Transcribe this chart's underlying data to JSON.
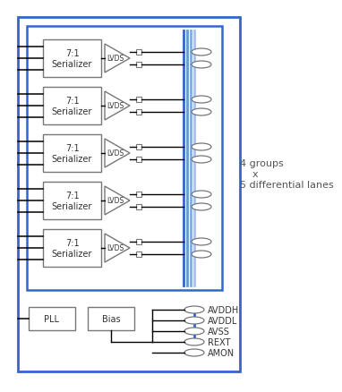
{
  "bg_color": "#ffffff",
  "outer_box_color": "#3366cc",
  "inner_box_colors": [
    "#6699cc",
    "#88aadd",
    "#aabfee"
  ],
  "ser_ec": "#777777",
  "line_color": "#000000",
  "annotation_text": "4 groups\n    x\n5 differential lanes",
  "serializer_labels": [
    "7:1\nSerializer",
    "7:1\nSerializer",
    "7:1\nSerializer",
    "7:1\nSerializer",
    "7:1\nSerializer"
  ],
  "lvds_label": "LVDS",
  "pll_label": "PLL",
  "bias_label": "Bias",
  "pin_labels": [
    "AVDDH",
    "AVDDL",
    "AVSS",
    "REXT",
    "AMON"
  ],
  "annotation_fontsize": 8.0,
  "label_fontsize": 7.0,
  "pin_fontsize": 7.0
}
